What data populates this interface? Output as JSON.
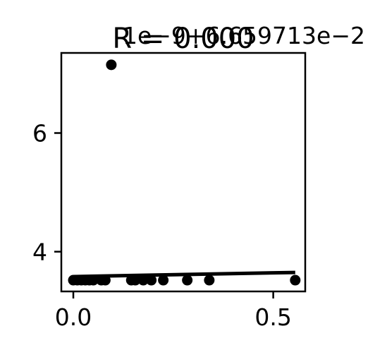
{
  "chart_data": {
    "type": "scatter",
    "title": "R = 0.000",
    "offset_text": "1e−9+6.659713e−2",
    "xlim": [
      -0.03,
      0.58
    ],
    "ylim": [
      3.33,
      7.35
    ],
    "x_ticks": [
      {
        "value": 0.0,
        "label": "0.0"
      },
      {
        "value": 0.5,
        "label": "0.5"
      }
    ],
    "y_ticks": [
      {
        "value": 4,
        "label": "4"
      },
      {
        "value": 6,
        "label": "6"
      }
    ],
    "grid": false,
    "legend": "none",
    "points": [
      {
        "x": 0.0,
        "y": 3.52
      },
      {
        "x": 0.01,
        "y": 3.52
      },
      {
        "x": 0.02,
        "y": 3.52
      },
      {
        "x": 0.03,
        "y": 3.52
      },
      {
        "x": 0.04,
        "y": 3.52
      },
      {
        "x": 0.05,
        "y": 3.52
      },
      {
        "x": 0.07,
        "y": 3.52
      },
      {
        "x": 0.08,
        "y": 3.52
      },
      {
        "x": 0.095,
        "y": 7.15
      },
      {
        "x": 0.145,
        "y": 3.52
      },
      {
        "x": 0.155,
        "y": 3.52
      },
      {
        "x": 0.175,
        "y": 3.52
      },
      {
        "x": 0.195,
        "y": 3.52
      },
      {
        "x": 0.225,
        "y": 3.52
      },
      {
        "x": 0.285,
        "y": 3.52
      },
      {
        "x": 0.34,
        "y": 3.52
      },
      {
        "x": 0.555,
        "y": 3.52
      }
    ],
    "fit_line": {
      "x": [
        0.0,
        0.555
      ],
      "y": [
        3.58,
        3.65
      ]
    },
    "colors": {
      "points": "#000000",
      "line": "#000000",
      "axes": "#000000"
    }
  }
}
